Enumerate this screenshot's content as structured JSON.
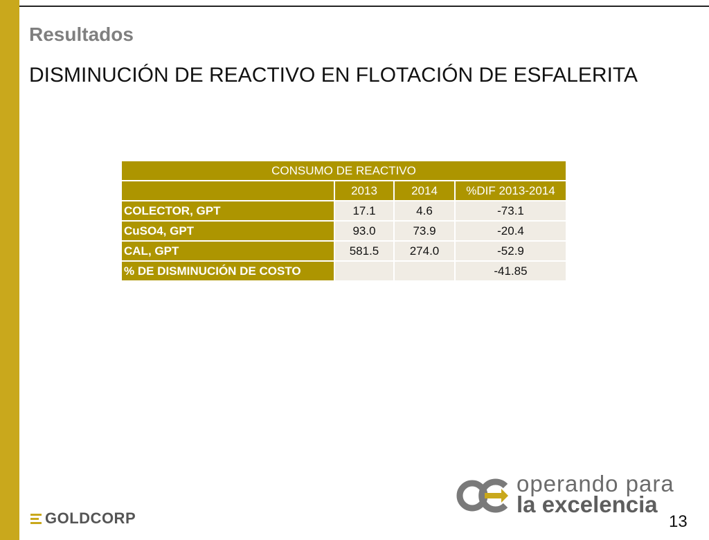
{
  "header": {
    "section_title": "Resultados",
    "slide_title": "DISMINUCIÓN DE REACTIVO EN FLOTACIÓN DE ESFALERITA"
  },
  "table": {
    "caption": "CONSUMO DE REACTIVO",
    "columns": [
      "",
      "2013",
      "2014",
      "%DIF 2013-2014"
    ],
    "rows": [
      {
        "label": "COLECTOR, GPT",
        "v2013": "17.1",
        "v2014": "4.6",
        "dif": "-73.1"
      },
      {
        "label": "CuSO4, GPT",
        "v2013": "93.0",
        "v2014": "73.9",
        "dif": "-20.4"
      },
      {
        "label": "CAL, GPT",
        "v2013": "581.5",
        "v2014": "274.0",
        "dif": "-52.9"
      },
      {
        "label": "% DE DISMINUCIÓN  DE COSTO",
        "v2013": "",
        "v2014": "",
        "dif": "-41.85"
      }
    ]
  },
  "footer": {
    "company_logo_text": "GOLDCORP",
    "tagline_line1": "operando para",
    "tagline_line2": "la excelencia",
    "page_number": "13"
  },
  "colors": {
    "gold_bar": "#c9a81c",
    "table_header": "#ad9500",
    "table_cell": "#f0ece4"
  }
}
